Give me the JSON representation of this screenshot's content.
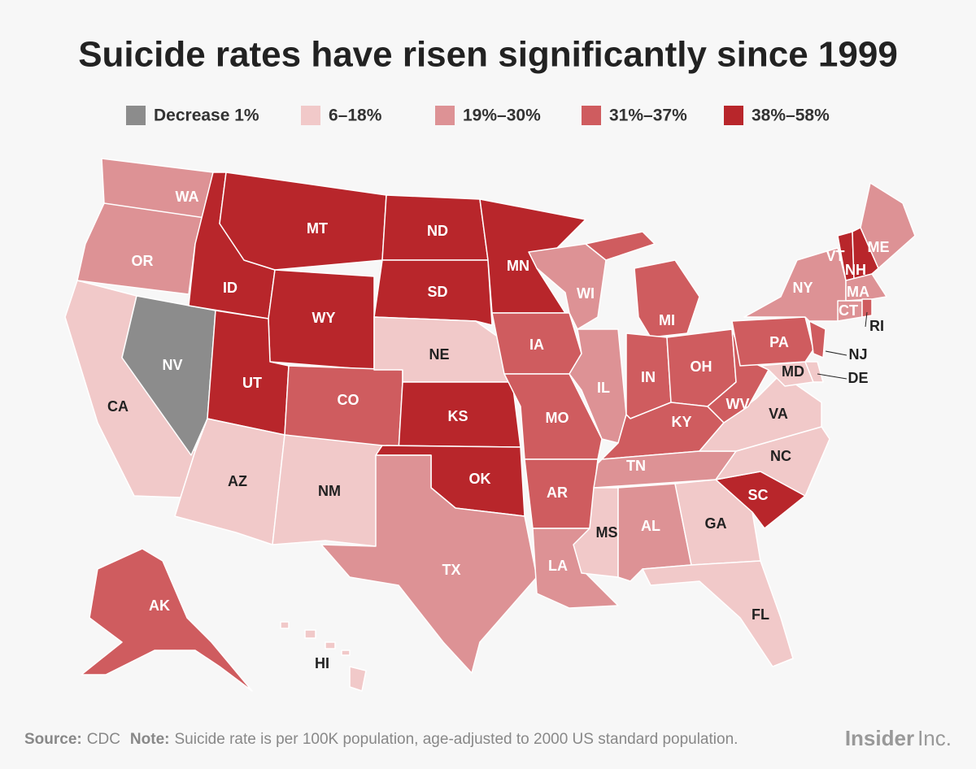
{
  "title": "Suicide rates have risen significantly since 1999",
  "legend": [
    {
      "label": "Decrease 1%",
      "color": "#8c8c8c"
    },
    {
      "label": "6–18%",
      "color": "#f1c9c9"
    },
    {
      "label": "19%–30%",
      "color": "#dd9295"
    },
    {
      "label": "31%–37%",
      "color": "#cf5c5f"
    },
    {
      "label": "38%–58%",
      "color": "#b8262b"
    }
  ],
  "states": [
    {
      "label": "WA",
      "bin": 2
    },
    {
      "label": "OR",
      "bin": 2
    },
    {
      "label": "CA",
      "bin": 1
    },
    {
      "label": "NV",
      "bin": 0
    },
    {
      "label": "ID",
      "bin": 4
    },
    {
      "label": "MT",
      "bin": 4
    },
    {
      "label": "WY",
      "bin": 4
    },
    {
      "label": "UT",
      "bin": 4
    },
    {
      "label": "CO",
      "bin": 3
    },
    {
      "label": "AZ",
      "bin": 1
    },
    {
      "label": "NM",
      "bin": 1
    },
    {
      "label": "ND",
      "bin": 4
    },
    {
      "label": "SD",
      "bin": 4
    },
    {
      "label": "NE",
      "bin": 1
    },
    {
      "label": "KS",
      "bin": 4
    },
    {
      "label": "OK",
      "bin": 4
    },
    {
      "label": "TX",
      "bin": 2
    },
    {
      "label": "MN",
      "bin": 4
    },
    {
      "label": "IA",
      "bin": 3
    },
    {
      "label": "MO",
      "bin": 3
    },
    {
      "label": "AR",
      "bin": 3
    },
    {
      "label": "LA",
      "bin": 2
    },
    {
      "label": "WI",
      "bin": 2
    },
    {
      "label": "IL",
      "bin": 2
    },
    {
      "label": "MI",
      "bin": 3
    },
    {
      "label": "IN",
      "bin": 3
    },
    {
      "label": "OH",
      "bin": 3
    },
    {
      "label": "KY",
      "bin": 3
    },
    {
      "label": "TN",
      "bin": 2
    },
    {
      "label": "MS",
      "bin": 1
    },
    {
      "label": "AL",
      "bin": 2
    },
    {
      "label": "GA",
      "bin": 1
    },
    {
      "label": "FL",
      "bin": 1
    },
    {
      "label": "SC",
      "bin": 4
    },
    {
      "label": "NC",
      "bin": 1
    },
    {
      "label": "VA",
      "bin": 1
    },
    {
      "label": "WV",
      "bin": 3
    },
    {
      "label": "MD",
      "bin": 1
    },
    {
      "label": "DE",
      "bin": 1
    },
    {
      "label": "PA",
      "bin": 3
    },
    {
      "label": "NJ",
      "bin": 3
    },
    {
      "label": "NY",
      "bin": 2
    },
    {
      "label": "VT",
      "bin": 4
    },
    {
      "label": "NH",
      "bin": 4
    },
    {
      "label": "ME",
      "bin": 2
    },
    {
      "label": "MA",
      "bin": 2
    },
    {
      "label": "CT",
      "bin": 2
    },
    {
      "label": "RI",
      "bin": 3
    },
    {
      "label": "AK",
      "bin": 3
    },
    {
      "label": "HI",
      "bin": 1
    }
  ],
  "footer": {
    "source_label": "Source:",
    "source": "CDC",
    "note_label": "Note:",
    "note": "Suicide rate is per 100K population, age-adjusted to 2000 US standard population.",
    "brand": "Insider",
    "brand_suffix": "Inc."
  }
}
